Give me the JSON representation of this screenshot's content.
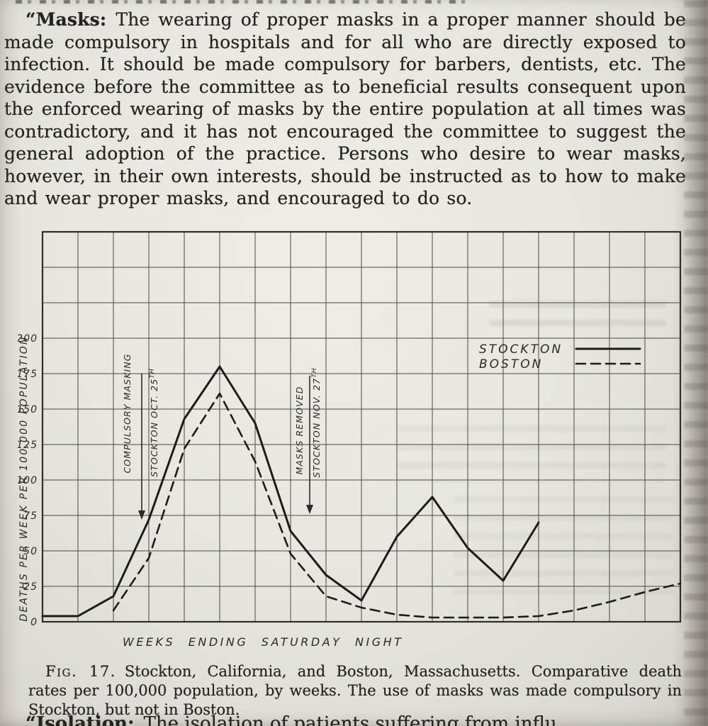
{
  "paper_color": "#e9e6e0",
  "ink_color": "#242321",
  "paragraph": {
    "lead": "“Masks:",
    "body": "The wearing of proper masks in a proper manner should be made compulsory in hospitals and for all who are directly exposed to infection. It should be made compulsory for barbers, dentists, etc. The evidence before the committee as to beneficial results consequent upon the enforced wearing of masks by the entire population at all times was contradictory, and it has not encouraged the committee to suggest the general adoption of the practice. Persons who desire to wear masks, however, in their own interests, should be instructed as to how to make and wear proper masks, and encouraged to do so."
  },
  "figure": {
    "caption_label": "Fig. 17.",
    "caption_text": "Stockton, California, and Boston, Massachusetts. Comparative death rates per 100,000 population, by weeks. The use of masks was made compulsory in Stockton, but not in Boston."
  },
  "bottom_partial": {
    "lead": "“Isolation:",
    "body": "The isolation of patients suffering from influ"
  },
  "chart_data": {
    "type": "line",
    "title": "",
    "xlabel": "WEEKS ENDING SATURDAY NIGHT",
    "ylabel": "DEATHS PER WEEK PER 100,000 POPULATION",
    "y_ticks": [
      0,
      25,
      50,
      75,
      100,
      125,
      150,
      175,
      200
    ],
    "ylim": [
      0,
      275
    ],
    "x_gridline_count": 19,
    "x_tick_labels": "none",
    "grid": true,
    "legend_position": "top-right-inside",
    "series": [
      {
        "name": "STOCKTON",
        "line_style": "solid",
        "points": [
          [
            1,
            4
          ],
          [
            2,
            4
          ],
          [
            3,
            18
          ],
          [
            4,
            72
          ],
          [
            5,
            143
          ],
          [
            6,
            180
          ],
          [
            7,
            140
          ],
          [
            8,
            64
          ],
          [
            9,
            33
          ],
          [
            10,
            15
          ],
          [
            11,
            60
          ],
          [
            12,
            88
          ],
          [
            13,
            52
          ],
          [
            14,
            29
          ],
          [
            15,
            70
          ]
        ]
      },
      {
        "name": "BOSTON",
        "line_style": "dashed",
        "points": [
          [
            3,
            8
          ],
          [
            4,
            45
          ],
          [
            5,
            122
          ],
          [
            6,
            161
          ],
          [
            7,
            113
          ],
          [
            8,
            48
          ],
          [
            9,
            18
          ],
          [
            10,
            10
          ],
          [
            11,
            5
          ],
          [
            12,
            3
          ],
          [
            13,
            3
          ],
          [
            14,
            3
          ],
          [
            15,
            4
          ],
          [
            16,
            8
          ],
          [
            17,
            14
          ],
          [
            18,
            21
          ],
          [
            19,
            27
          ]
        ]
      }
    ],
    "annotations": [
      {
        "line1": "COMPULSORY MASKING",
        "line2": "STOCKTON OCT. 25",
        "line2_sup": "TH",
        "arrow": "down"
      },
      {
        "line1": "MASKS REMOVED",
        "line2": "STOCKTON NOV. 27",
        "line2_sup": "TH",
        "arrow": "down"
      }
    ]
  }
}
